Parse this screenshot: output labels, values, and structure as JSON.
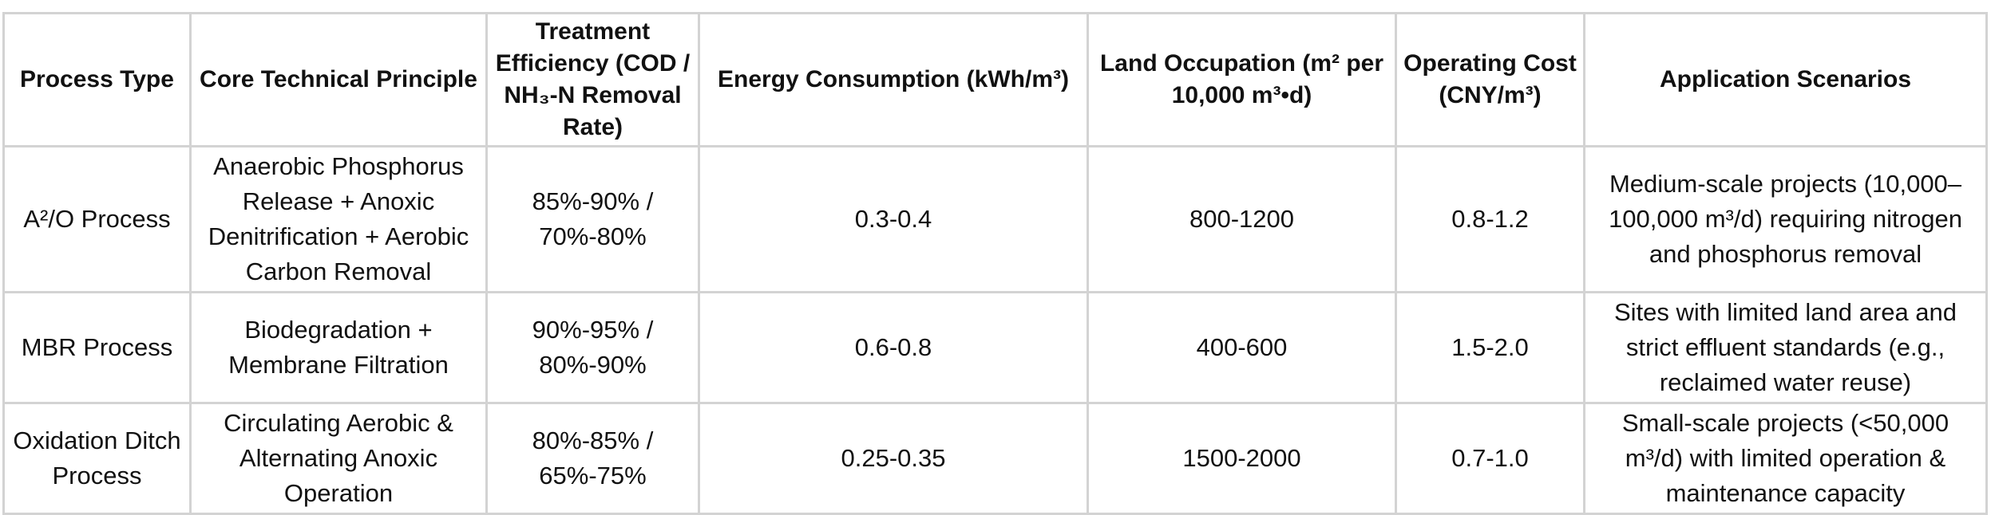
{
  "table": {
    "headers": [
      "Process Type",
      "Core Technical Principle",
      "Treatment Efficiency (COD / NH₃-N Removal Rate)",
      "Energy Consumption (kWh/m³)",
      "Land Occupation (m² per 10,000 m³•d)",
      "Operating Cost (CNY/m³)",
      "Application Scenarios"
    ],
    "rows": [
      [
        "A²/O Process",
        "Anaerobic Phosphorus Release + Anoxic Denitrification + Aerobic Carbon Removal",
        "85%-90% / 70%-80%",
        "0.3-0.4",
        "800-1200",
        "0.8-1.2",
        "Medium-scale projects (10,000–100,000 m³/d) requiring nitrogen and phosphorus removal"
      ],
      [
        "MBR Process",
        "Biodegradation + Membrane Filtration",
        "90%-95% / 80%-90%",
        "0.6-0.8",
        "400-600",
        "1.5-2.0",
        "Sites with limited land area and strict effluent standards (e.g., reclaimed water reuse)"
      ],
      [
        "Oxidation Ditch Process",
        "Circulating Aerobic & Alternating Anoxic Operation",
        "80%-85% / 65%-75%",
        "0.25-0.35",
        "1500-2000",
        "0.7-1.0",
        "Small-scale projects (<50,000 m³/d) with limited operation & maintenance capacity"
      ]
    ]
  }
}
